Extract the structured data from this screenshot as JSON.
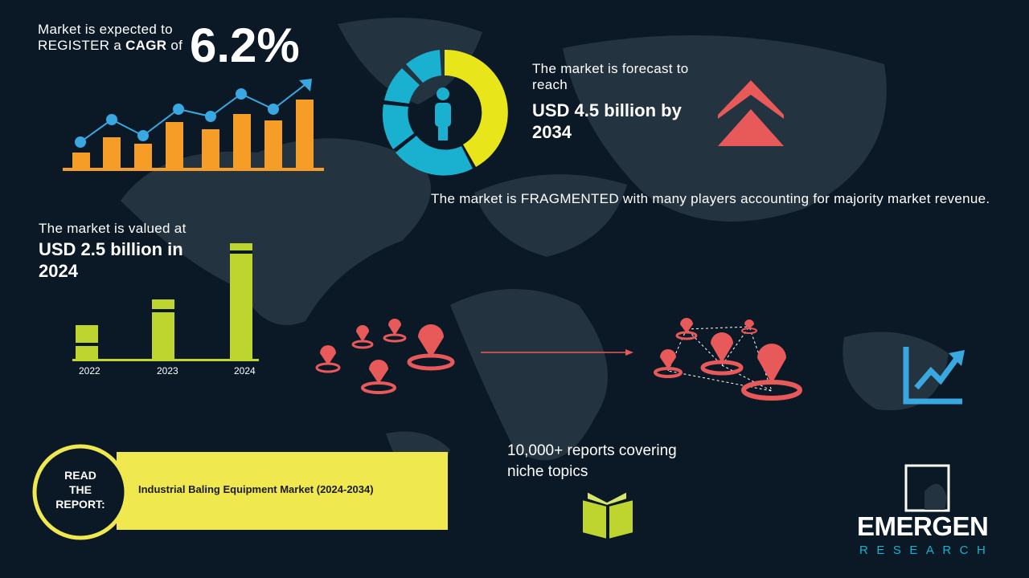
{
  "cagr": {
    "line1": "Market is expected to",
    "line2_pre": "REGISTER a ",
    "line2_bold": "CAGR",
    "line2_post": " of",
    "value": "6.2%"
  },
  "forecast": {
    "line1": "The market is forecast to reach",
    "value": "USD 4.5 billion by 2034"
  },
  "fragmented": {
    "text": "The market is FRAGMENTED with many players accounting for majority market revenue."
  },
  "valued": {
    "line1": "The market is valued at",
    "value": "USD 2.5 billion in 2024",
    "years": [
      "2022",
      "2023",
      "2024"
    ]
  },
  "reports": {
    "text": "10,000+ reports covering niche topics"
  },
  "read_report": {
    "label": "READ THE REPORT:",
    "title": "Industrial Baling Equipment Market (2024-2034)"
  },
  "logo": {
    "name": "EMERGEN",
    "sub": "RESEARCH"
  },
  "colors": {
    "background": "#0b1826",
    "map": "#243340",
    "orange": "#f59d27",
    "blue": "#3aa8e0",
    "yellow": "#e8e51a",
    "teal": "#1ab0d0",
    "red": "#e85a5a",
    "green": "#bed530"
  }
}
